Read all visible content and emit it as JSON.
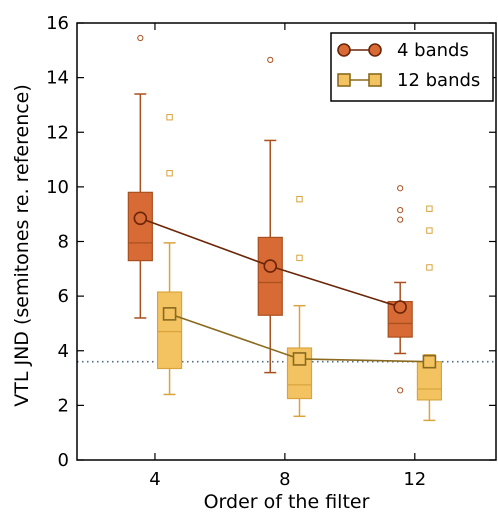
{
  "chart_data": {
    "type": "box",
    "xlabel": "Order of the filter",
    "ylabel": "VTL JND (semitones re. reference)",
    "categories": [
      4,
      8,
      12
    ],
    "xlim": [
      1.6,
      14.5
    ],
    "ylim": [
      0,
      16
    ],
    "yticks": [
      0,
      2,
      4,
      6,
      8,
      10,
      12,
      14,
      16
    ],
    "reference_line": {
      "y": 3.6,
      "style": "dotted",
      "color": "#4a6f86"
    },
    "legend": {
      "placement": "top-right"
    },
    "series": [
      {
        "name": "4 bands",
        "marker": "circle",
        "line_color": "#6b2508",
        "box_fill": "#d86a35",
        "box_edge": "#a9501f",
        "x_offset": -0.45,
        "means": [
          8.85,
          7.1,
          5.6
        ],
        "boxes": [
          {
            "whisker_low": 5.2,
            "q1": 7.3,
            "median": 7.95,
            "q3": 9.8,
            "whisker_high": 13.4,
            "outliers": [
              15.45
            ]
          },
          {
            "whisker_low": 3.2,
            "q1": 5.3,
            "median": 6.5,
            "q3": 8.15,
            "whisker_high": 11.7,
            "outliers": [
              14.65
            ]
          },
          {
            "whisker_low": 3.9,
            "q1": 4.5,
            "median": 5.0,
            "q3": 5.8,
            "whisker_high": 6.5,
            "outliers": [
              2.55,
              8.8,
              9.15,
              9.95
            ]
          }
        ]
      },
      {
        "name": "12 bands",
        "marker": "square",
        "line_color": "#8a6a1e",
        "box_fill": "#f4c361",
        "box_edge": "#d9a43e",
        "x_offset": 0.45,
        "means": [
          5.35,
          3.7,
          3.6
        ],
        "boxes": [
          {
            "whisker_low": 2.4,
            "q1": 3.35,
            "median": 4.7,
            "q3": 6.15,
            "whisker_high": 7.95,
            "outliers": [
              10.5,
              12.55
            ]
          },
          {
            "whisker_low": 1.6,
            "q1": 2.25,
            "median": 2.75,
            "q3": 4.1,
            "whisker_high": 5.65,
            "outliers": [
              7.4,
              9.55
            ]
          },
          {
            "whisker_low": 1.45,
            "q1": 2.2,
            "median": 2.6,
            "q3": 3.6,
            "whisker_high": 3.85,
            "outliers": [
              7.05,
              8.4,
              9.2
            ]
          }
        ]
      }
    ]
  }
}
